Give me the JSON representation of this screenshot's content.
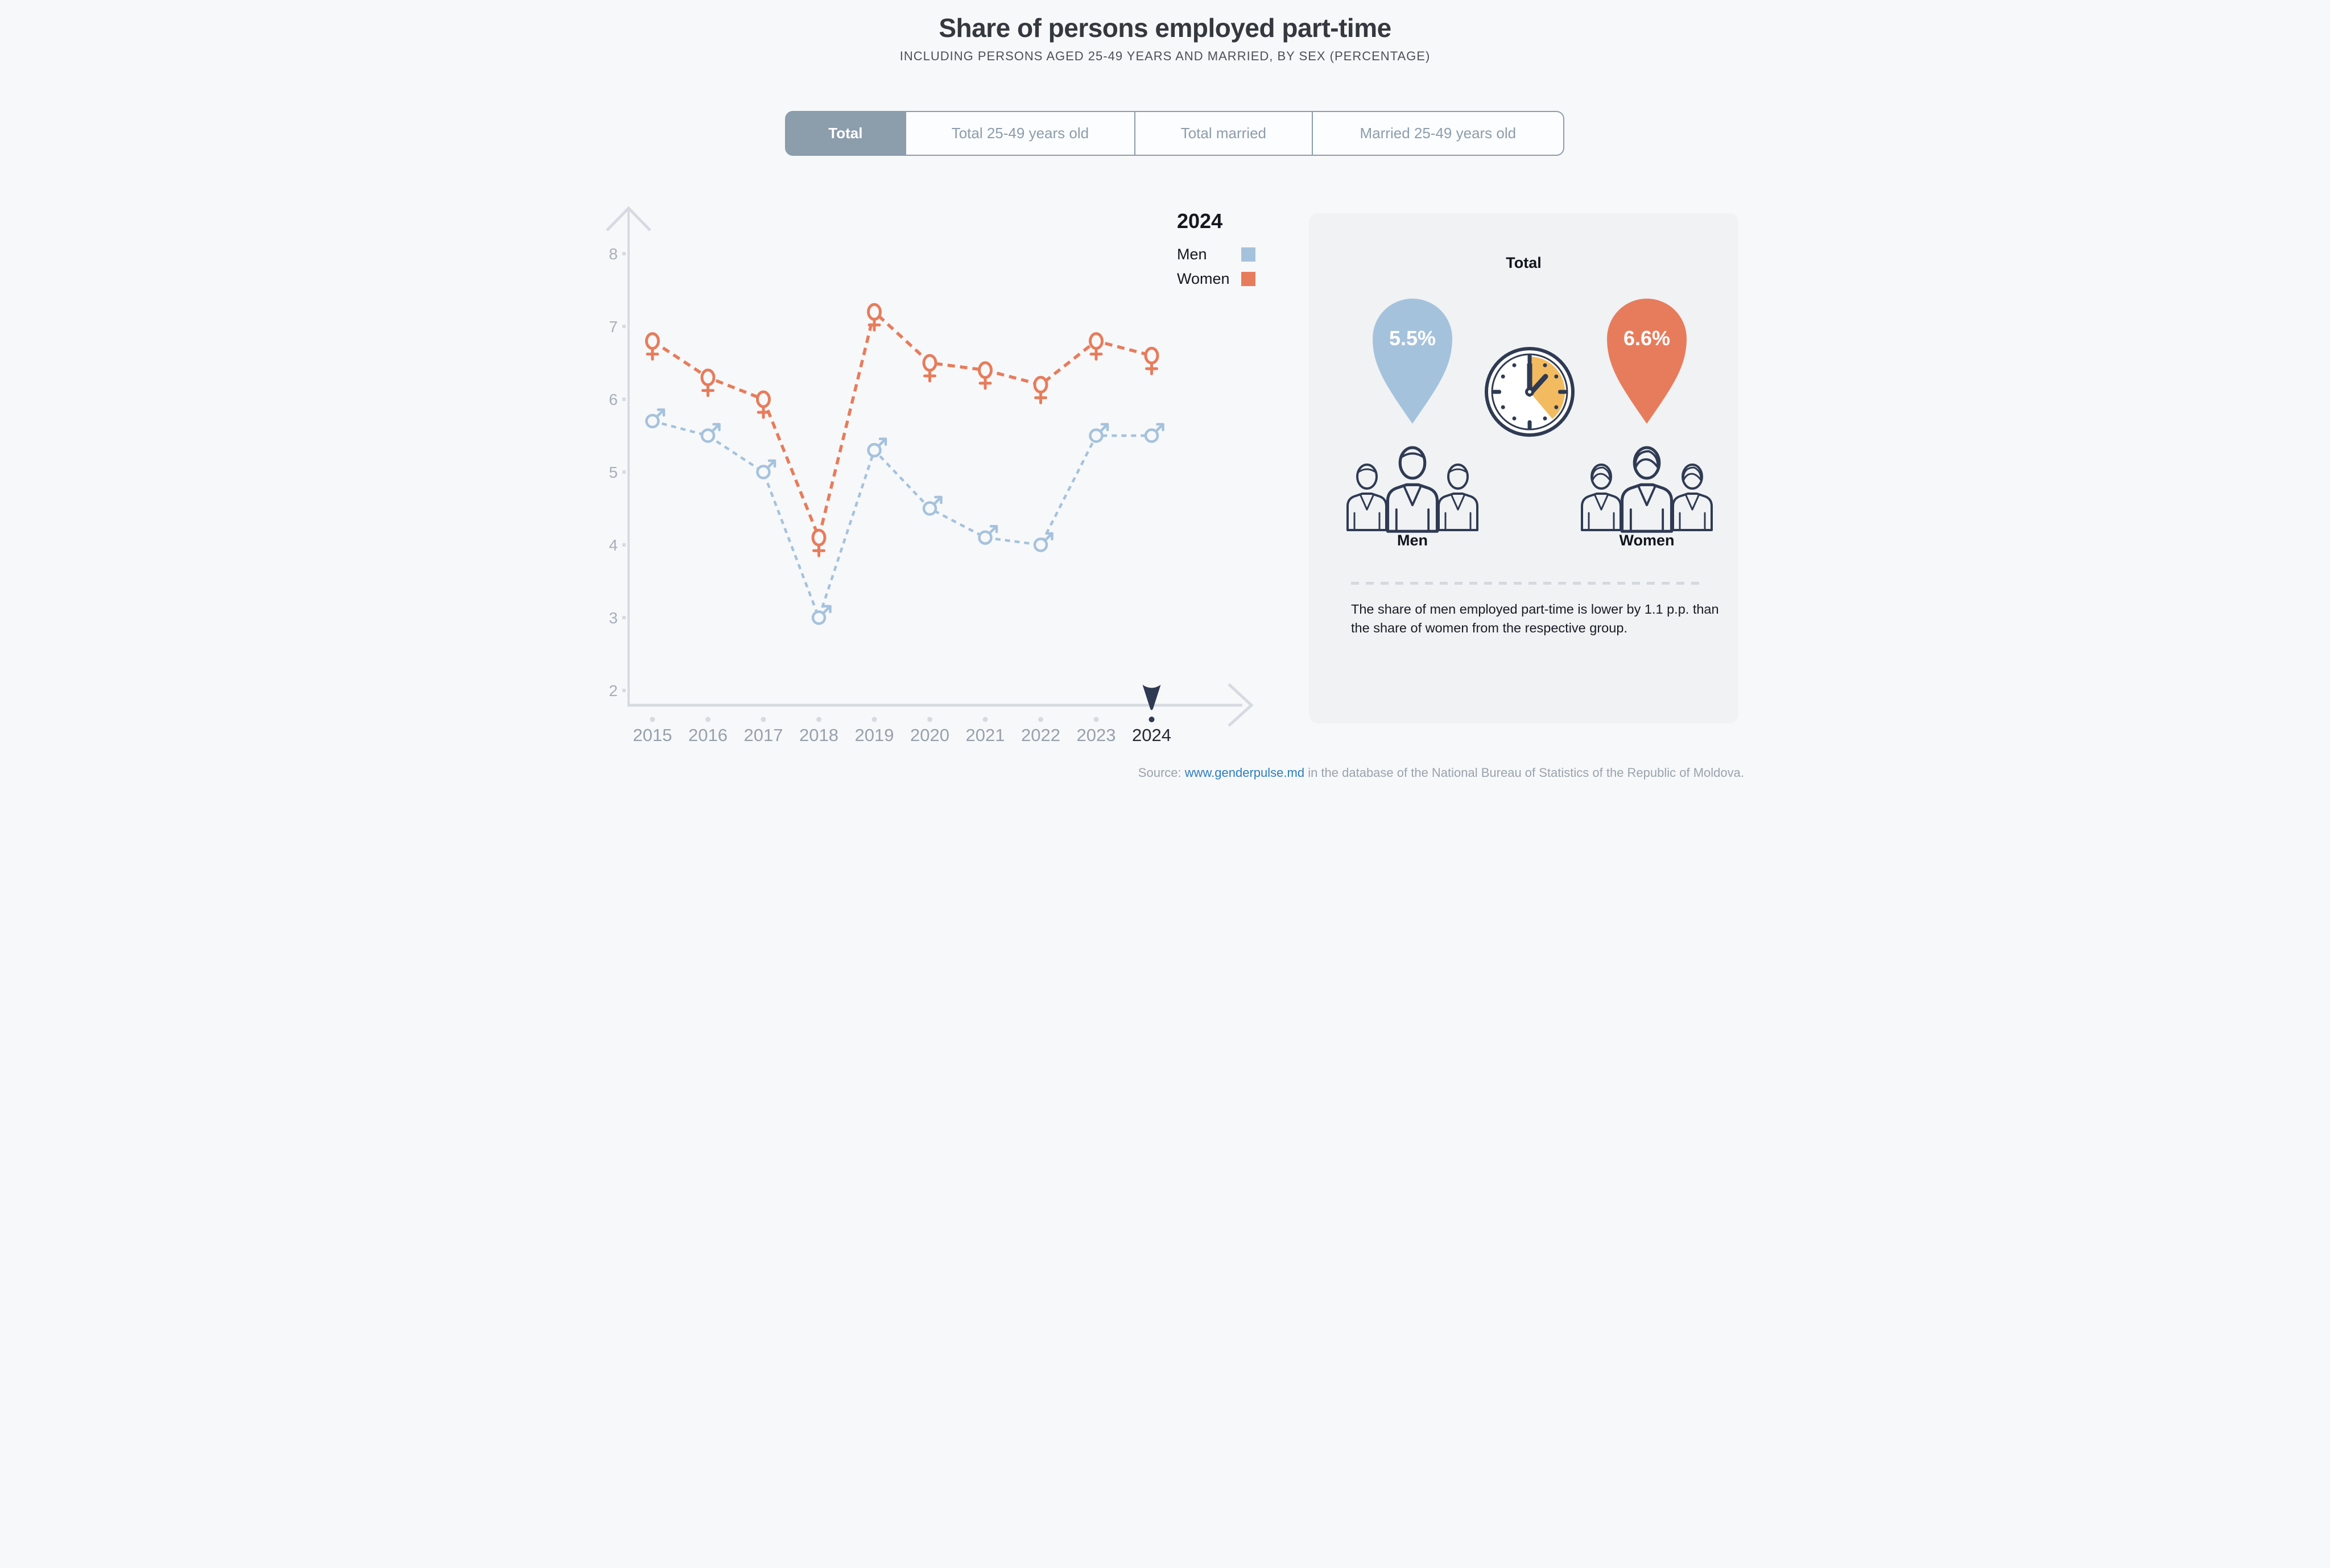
{
  "header": {
    "title": "Share of persons employed part-time",
    "subtitle": "INCLUDING PERSONS AGED 25-49 YEARS AND MARRIED, BY SEX (PERCENTAGE)"
  },
  "tabs": [
    {
      "label": "Total",
      "active": true
    },
    {
      "label": "Total 25-49 years old",
      "active": false
    },
    {
      "label": "Total married",
      "active": false
    },
    {
      "label": "Married 25-49 years old",
      "active": false
    }
  ],
  "legend": {
    "year": "2024",
    "items": [
      {
        "label": "Men",
        "color": "#a5c2dd"
      },
      {
        "label": "Women",
        "color": "#e77c5c"
      }
    ]
  },
  "chart_data": {
    "type": "line",
    "title": "Share of persons employed part-time",
    "xlabel": "",
    "ylabel": "",
    "x": [
      2015,
      2016,
      2017,
      2018,
      2019,
      2020,
      2021,
      2022,
      2023,
      2024
    ],
    "series": [
      {
        "name": "Men",
        "color": "#a5c2dd",
        "marker": "male",
        "values": [
          5.7,
          5.5,
          5.0,
          3.0,
          5.3,
          4.5,
          4.1,
          4.0,
          5.5,
          5.5
        ]
      },
      {
        "name": "Women",
        "color": "#e77c5c",
        "marker": "female",
        "values": [
          6.8,
          6.3,
          6.0,
          4.1,
          7.2,
          6.5,
          6.4,
          6.2,
          6.8,
          6.6
        ]
      }
    ],
    "ylim": [
      2,
      8
    ],
    "yticks": [
      2,
      3,
      4,
      5,
      6,
      7,
      8
    ],
    "highlight_year": 2024,
    "grid": false,
    "legend_position": "top-right"
  },
  "panel": {
    "title": "Total",
    "men_value": "5.5%",
    "women_value": "6.6%",
    "men_label": "Men",
    "women_label": "Women",
    "note": "The share of men employed part-time is lower by 1.1 p.p. than the share of women from the respective group."
  },
  "source": {
    "prefix": "Source: ",
    "link": "www.genderpulse.md",
    "suffix": " in the database of the National Bureau of Statistics of the Republic of Moldova."
  },
  "colors": {
    "page_bg": "#f7f8f9",
    "panel_bg": "#f0f2f4",
    "men": "#a5c2dd",
    "women": "#e77c5c",
    "navy": "#2f3a53",
    "axis": "#d6dbe1",
    "tick_label": "#a6afbb",
    "year_label": "#97a1ad",
    "highlight_year_label": "#262b33",
    "tab_accent": "#8c9dac",
    "clock_yellow": "#f3bb60",
    "link": "#2e7ec0",
    "source_text": "#99a3ae",
    "divider": "#d4d9de"
  }
}
